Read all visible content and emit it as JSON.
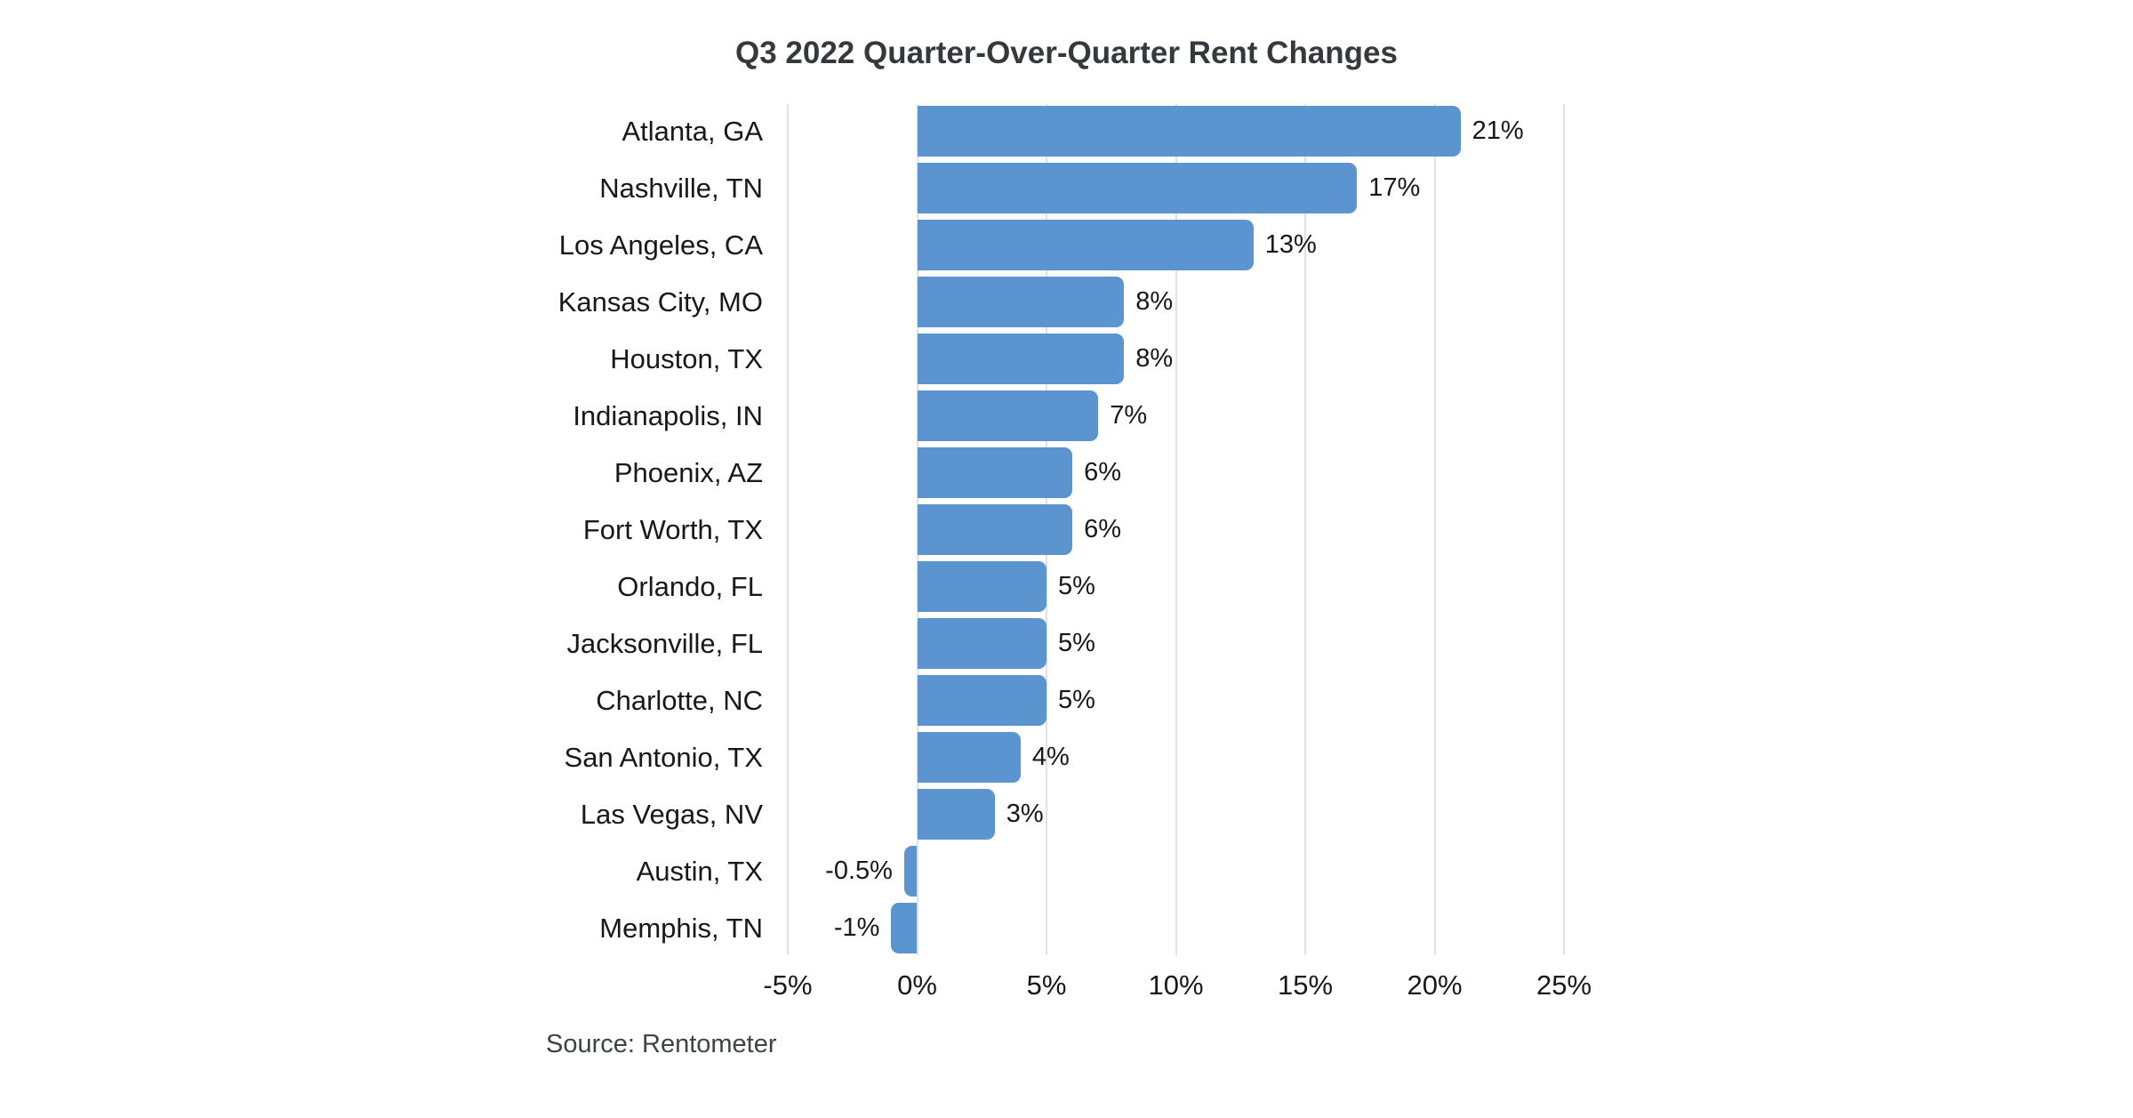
{
  "title": "Q3 2022 Quarter-Over-Quarter Rent Changes",
  "source": "Source: Rentometer",
  "colors": {
    "bar": "#5b94ce",
    "grid": "#e1e1e1",
    "title_text": "#35393e",
    "label_text": "#17181a",
    "source_text": "#3f4347",
    "background": "#ffffff"
  },
  "chart_data": {
    "type": "bar",
    "orientation": "horizontal",
    "title": "Q3 2022 Quarter-Over-Quarter Rent Changes",
    "xlabel": "",
    "ylabel": "",
    "categories": [
      "Atlanta, GA",
      "Nashville, TN",
      "Los Angeles, CA",
      "Kansas City, MO",
      "Houston, TX",
      "Indianapolis, IN",
      "Phoenix, AZ",
      "Fort Worth, TX",
      "Orlando, FL",
      "Jacksonville, FL",
      "Charlotte, NC",
      "San Antonio, TX",
      "Las Vegas, NV",
      "Austin, TX",
      "Memphis, TN"
    ],
    "values": [
      21,
      17,
      13,
      8,
      8,
      7,
      6,
      6,
      5,
      5,
      5,
      4,
      3,
      -0.5,
      -1
    ],
    "value_labels": [
      "21%",
      "17%",
      "13%",
      "8%",
      "8%",
      "7%",
      "6%",
      "6%",
      "5%",
      "5%",
      "5%",
      "4%",
      "3%",
      "-0.5%",
      "-1%"
    ],
    "xlim": [
      -5,
      25
    ],
    "xticks": [
      -5,
      0,
      5,
      10,
      15,
      20,
      25
    ],
    "xtick_labels": [
      "-5%",
      "0%",
      "5%",
      "10%",
      "15%",
      "20%",
      "25%"
    ],
    "grid": true,
    "legend": false,
    "annotation": "Source: Rentometer"
  }
}
